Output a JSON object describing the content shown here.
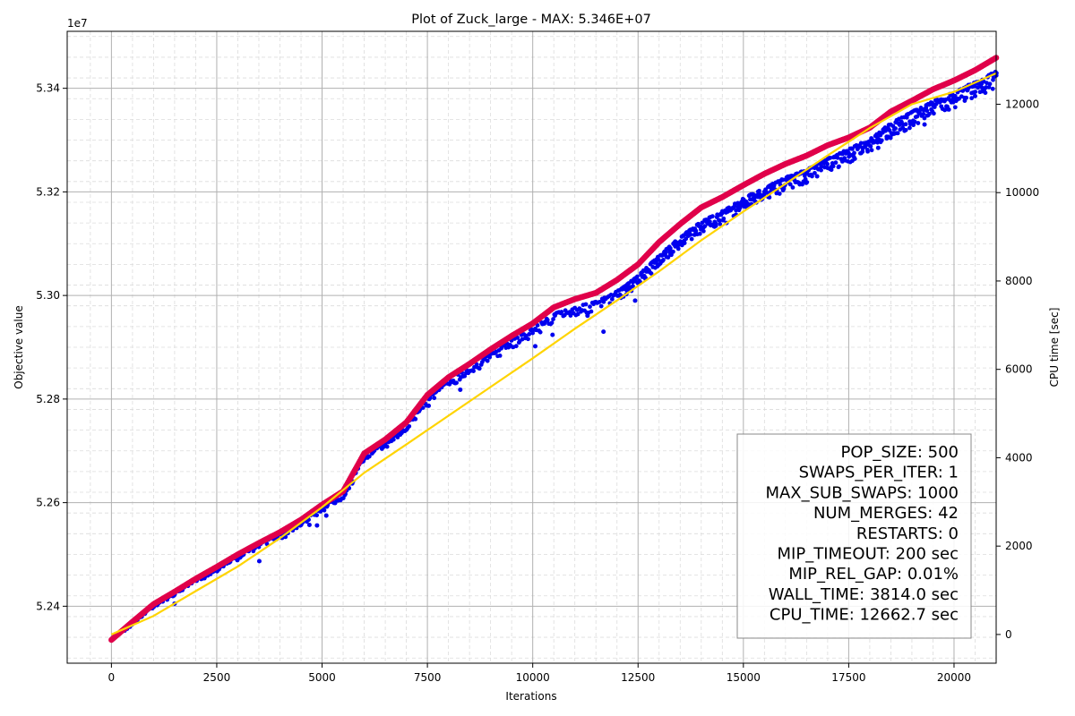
{
  "chart_data": {
    "type": "scatter",
    "title": "Plot of Zuck_large - MAX: 5.346E+07",
    "xlabel": "Iterations",
    "ylabel": "Objective value",
    "y2label": "CPU time [sec]",
    "y_offset_label": "1e7",
    "xlim": [
      -1050,
      21000
    ],
    "ylim": [
      52.29,
      53.51
    ],
    "y2lim": [
      -650,
      13650
    ],
    "x_ticks": [
      0,
      2500,
      5000,
      7500,
      10000,
      12500,
      15000,
      17500,
      20000
    ],
    "x_tick_labels": [
      "0",
      "2500",
      "5000",
      "7500",
      "10000",
      "12500",
      "15000",
      "17500",
      "20000"
    ],
    "y_ticks": [
      52.4,
      52.6,
      52.8,
      53.0,
      53.2,
      53.4
    ],
    "y_tick_labels": [
      "5.24",
      "5.26",
      "5.28",
      "5.30",
      "5.32",
      "5.34"
    ],
    "y2_ticks": [
      0,
      2000,
      4000,
      6000,
      8000,
      10000,
      12000
    ],
    "y2_tick_labels": [
      "0",
      "2000",
      "4000",
      "6000",
      "8000",
      "10000",
      "12000"
    ],
    "grid": "major and minor, dashed minor",
    "legend_placement": "bottom-right",
    "series": [
      {
        "role": "best objective (max)",
        "color": "#e0004a",
        "axis": "left",
        "x": [
          0,
          500,
          1000,
          1500,
          2000,
          2500,
          3000,
          3500,
          4000,
          4500,
          5000,
          5500,
          6000,
          6500,
          7000,
          7500,
          8000,
          8500,
          9000,
          9500,
          10000,
          10500,
          11000,
          11500,
          12000,
          12500,
          13000,
          13500,
          14000,
          14500,
          15000,
          15500,
          16000,
          16500,
          17000,
          17500,
          18000,
          18500,
          19000,
          19500,
          20000,
          20500,
          21000
        ],
        "y": [
          52.335,
          52.37,
          52.404,
          52.428,
          52.453,
          52.476,
          52.5,
          52.522,
          52.543,
          52.567,
          52.596,
          52.622,
          52.695,
          52.722,
          52.755,
          52.808,
          52.842,
          52.868,
          52.896,
          52.922,
          52.946,
          52.977,
          52.993,
          53.005,
          53.03,
          53.06,
          53.103,
          53.138,
          53.17,
          53.19,
          53.213,
          53.235,
          53.254,
          53.27,
          53.29,
          53.305,
          53.324,
          53.355,
          53.376,
          53.398,
          53.415,
          53.435,
          53.459
        ]
      },
      {
        "role": "population objective values",
        "color": "#0000ee",
        "axis": "left",
        "x": [
          0,
          500,
          1000,
          1500,
          2000,
          2500,
          3000,
          3500,
          4000,
          4500,
          5000,
          5500,
          6000,
          6500,
          7000,
          7500,
          8000,
          8500,
          9000,
          9500,
          10000,
          10500,
          11000,
          11500,
          12000,
          12500,
          13000,
          13500,
          14000,
          14500,
          15000,
          15500,
          16000,
          16500,
          17000,
          17500,
          18000,
          18500,
          19000,
          19500,
          20000,
          20500,
          21000
        ],
        "y": [
          52.335,
          52.366,
          52.4,
          52.424,
          52.449,
          52.472,
          52.496,
          52.518,
          52.539,
          52.562,
          52.59,
          52.615,
          52.688,
          52.715,
          52.748,
          52.8,
          52.834,
          52.858,
          52.886,
          52.911,
          52.934,
          52.962,
          52.975,
          52.985,
          53.005,
          53.035,
          53.075,
          53.11,
          53.14,
          53.16,
          53.185,
          53.205,
          53.225,
          53.24,
          53.262,
          53.28,
          53.3,
          53.33,
          53.352,
          53.372,
          53.39,
          53.41,
          53.43
        ]
      },
      {
        "role": "CPU time",
        "color": "#ffd400",
        "axis": "right",
        "x": [
          0,
          1000,
          2000,
          3000,
          4000,
          5000,
          6000,
          7000,
          8000,
          9000,
          10000,
          11000,
          12000,
          13000,
          14000,
          15000,
          16000,
          17000,
          18000,
          19000,
          20000,
          21000
        ],
        "y": [
          0,
          420,
          980,
          1540,
          2180,
          2880,
          3660,
          4300,
          4950,
          5600,
          6250,
          6920,
          7560,
          8220,
          8920,
          9570,
          10200,
          10840,
          11460,
          12000,
          12280,
          12700
        ]
      }
    ],
    "legend": [
      "POP_SIZE: 500",
      "SWAPS_PER_ITER: 1",
      "MAX_SUB_SWAPS: 1000",
      "NUM_MERGES: 42",
      "RESTARTS: 0",
      "MIP_TIMEOUT: 200 sec",
      "MIP_REL_GAP: 0.01%",
      "WALL_TIME: 3814.0 sec",
      "CPU_TIME: 12662.7 sec"
    ],
    "outliers": [
      {
        "x": 1500,
        "y": 52.405
      },
      {
        "x": 2990,
        "y": 52.489
      },
      {
        "x": 3510,
        "y": 52.487
      },
      {
        "x": 4050,
        "y": 52.532
      },
      {
        "x": 4130,
        "y": 52.534
      },
      {
        "x": 4700,
        "y": 52.557
      },
      {
        "x": 4880,
        "y": 52.556
      },
      {
        "x": 5100,
        "y": 52.575
      },
      {
        "x": 7530,
        "y": 52.787
      },
      {
        "x": 8280,
        "y": 52.818
      },
      {
        "x": 10060,
        "y": 52.902
      },
      {
        "x": 10470,
        "y": 52.924
      },
      {
        "x": 11300,
        "y": 52.961
      },
      {
        "x": 11680,
        "y": 52.93
      },
      {
        "x": 12430,
        "y": 52.99
      },
      {
        "x": 13140,
        "y": 53.085
      },
      {
        "x": 14600,
        "y": 53.14
      },
      {
        "x": 15600,
        "y": 53.195
      },
      {
        "x": 16750,
        "y": 53.23
      },
      {
        "x": 17400,
        "y": 53.265
      },
      {
        "x": 18200,
        "y": 53.285
      },
      {
        "x": 19300,
        "y": 53.33
      },
      {
        "x": 20500,
        "y": 53.385
      }
    ]
  },
  "colors": {
    "best": "#e0004a",
    "population": "#0000ee",
    "cpu": "#ffd400",
    "grid_major": "#b0b0b0",
    "grid_minor": "#dcdcdc"
  }
}
